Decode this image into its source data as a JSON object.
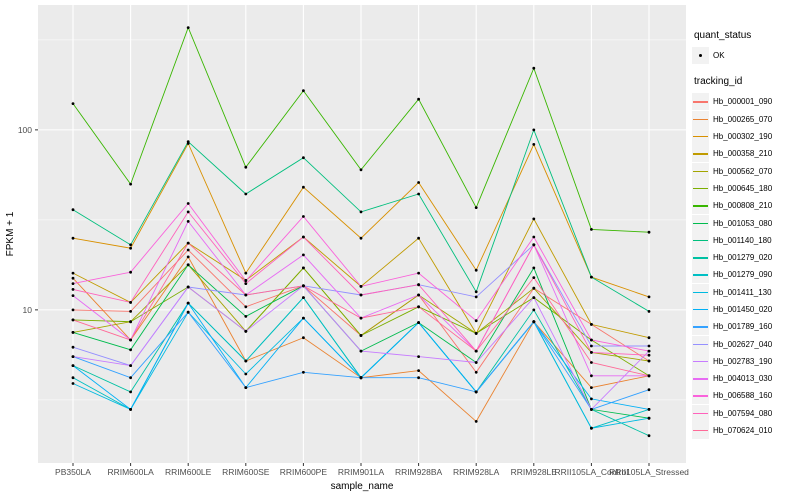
{
  "theme": {
    "page_bg": "#FFFFFF",
    "panel_bg": "#EBEBEB",
    "grid_major": "#FFFFFF",
    "grid_minor": "#FFFFFF",
    "tick_color": "#333333",
    "tick_label_color": "#4D4D4D",
    "axis_title_color": "#000000",
    "legend_key_bg": "#F2F2F2",
    "point_color": "#000000"
  },
  "legend": {
    "quant_status": {
      "title": "quant_status",
      "items": [
        {
          "label": "OK",
          "marker": "point-icon"
        }
      ]
    },
    "tracking_id": {
      "title": "tracking_id"
    }
  },
  "chart_data": {
    "type": "line",
    "title": "",
    "xlabel": "sample_name",
    "ylabel": "FPKM + 1",
    "yscale": "log10",
    "ylim": [
      1.41,
      494
    ],
    "y_major_breaks": [
      10,
      100
    ],
    "y_major_labels": [
      "10",
      "100"
    ],
    "y_minor_breaks": [
      3.162,
      31.62,
      316.2
    ],
    "grid": true,
    "legend_position": "right",
    "marker": {
      "shape": "circle",
      "color": "#000000",
      "size": 1.4
    },
    "categories": [
      "PB350LA",
      "RRIM600LA",
      "RRIM600LE",
      "RRIM600SE",
      "RRIM600PE",
      "RRIM901LA",
      "RRIM928BA",
      "RRIM928LA",
      "RRIM928LE",
      "RRII105LA_Control",
      "RRII105LA_Stressed"
    ],
    "series": [
      {
        "name": "Hb_000001_090",
        "color": "#F8766D",
        "values": [
          10.0,
          9.8,
          21.5,
          10.4,
          13.6,
          7.2,
          12.1,
          4.5,
          13.2,
          8.3,
          5.2
        ]
      },
      {
        "name": "Hb_000265_070",
        "color": "#EA8331",
        "values": [
          15.0,
          6.8,
          19.7,
          5.2,
          7.0,
          4.2,
          4.6,
          2.4,
          8.6,
          3.7,
          4.3
        ]
      },
      {
        "name": "Hb_000302_190",
        "color": "#D89000",
        "values": [
          25,
          22,
          84,
          16,
          48,
          25,
          51,
          16.6,
          83,
          15.2,
          11.8
        ]
      },
      {
        "name": "Hb_000358_210",
        "color": "#C09B00",
        "values": [
          16,
          11,
          23.5,
          14.6,
          25.4,
          13.5,
          25,
          7.4,
          32,
          8.3,
          7.0
        ]
      },
      {
        "name": "Hb_000562_070",
        "color": "#A3A500",
        "values": [
          7.5,
          8.6,
          17.8,
          7.6,
          17.1,
          7.2,
          12.1,
          7.4,
          13.2,
          5.8,
          5.2
        ]
      },
      {
        "name": "Hb_000645_180",
        "color": "#7CAE00",
        "values": [
          8.8,
          8.6,
          13.4,
          7.6,
          17.1,
          7.2,
          10.4,
          7.4,
          11.7,
          6.8,
          4.3
        ]
      },
      {
        "name": "Hb_000808_210",
        "color": "#39B600",
        "values": [
          140,
          50,
          370,
          62,
          165,
          60,
          148,
          37,
          220,
          28,
          27
        ]
      },
      {
        "name": "Hb_001053_080",
        "color": "#00BB4E",
        "values": [
          7.5,
          6.0,
          17.8,
          9.2,
          13.6,
          5.9,
          8.5,
          5.1,
          17.1,
          2.8,
          2.5
        ]
      },
      {
        "name": "Hb_001140_180",
        "color": "#00BF7D",
        "values": [
          36,
          23,
          86,
          44,
          70,
          35,
          44,
          12.6,
          100,
          15.2,
          9.8
        ]
      },
      {
        "name": "Hb_001279_020",
        "color": "#00C1A3",
        "values": [
          4.9,
          3.5,
          10.9,
          5.2,
          11.7,
          4.2,
          8.5,
          3.5,
          10,
          2.8,
          2.0
        ]
      },
      {
        "name": "Hb_001279_090",
        "color": "#00BFC4",
        "values": [
          4.2,
          2.8,
          10.9,
          5.2,
          11.7,
          4.2,
          8.5,
          3.5,
          8.6,
          2.2,
          2.8
        ]
      },
      {
        "name": "Hb_001411_130",
        "color": "#00BAE0",
        "values": [
          3.9,
          2.8,
          9.7,
          4.4,
          9.0,
          4.2,
          8.5,
          3.5,
          8.6,
          2.2,
          2.5
        ]
      },
      {
        "name": "Hb_001450_020",
        "color": "#00B0F6",
        "values": [
          4.9,
          2.8,
          10.9,
          3.7,
          9.0,
          4.2,
          8.5,
          3.5,
          8.6,
          3.2,
          2.8
        ]
      },
      {
        "name": "Hb_001789_160",
        "color": "#35A2FF",
        "values": [
          5.5,
          4.2,
          9.7,
          3.7,
          4.5,
          4.2,
          4.2,
          3.5,
          8.6,
          2.8,
          3.6
        ]
      },
      {
        "name": "Hb_002627_040",
        "color": "#9590FF",
        "values": [
          6.2,
          4.9,
          13.4,
          12.1,
          13.6,
          12.1,
          13.8,
          11.8,
          23,
          6.3,
          6.3
        ]
      },
      {
        "name": "Hb_002783_190",
        "color": "#C77CFF",
        "values": [
          5.5,
          4.9,
          13.4,
          7.6,
          13.6,
          5.9,
          5.5,
          5.1,
          11.7,
          2.8,
          5.9
        ]
      },
      {
        "name": "Hb_004013_030",
        "color": "#E76BF3",
        "values": [
          12,
          6.8,
          31,
          12.1,
          20.2,
          9.0,
          12.1,
          5.9,
          23,
          4.3,
          4.3
        ]
      },
      {
        "name": "Hb_006588_160",
        "color": "#FA62DB",
        "values": [
          14,
          16.2,
          39,
          14.5,
          33,
          13.5,
          16,
          8.7,
          25.4,
          6.8,
          5.9
        ]
      },
      {
        "name": "Hb_007594_080",
        "color": "#FF62BC",
        "values": [
          13,
          11,
          35,
          14,
          25.4,
          12.1,
          13.8,
          5.9,
          23,
          5.8,
          5.6
        ]
      },
      {
        "name": "Hb_070624_010",
        "color": "#FF6A98",
        "values": [
          8.8,
          6.8,
          23.5,
          12.1,
          13.6,
          9.0,
          10.4,
          5.9,
          15.1,
          5.1,
          4.3
        ]
      }
    ]
  }
}
